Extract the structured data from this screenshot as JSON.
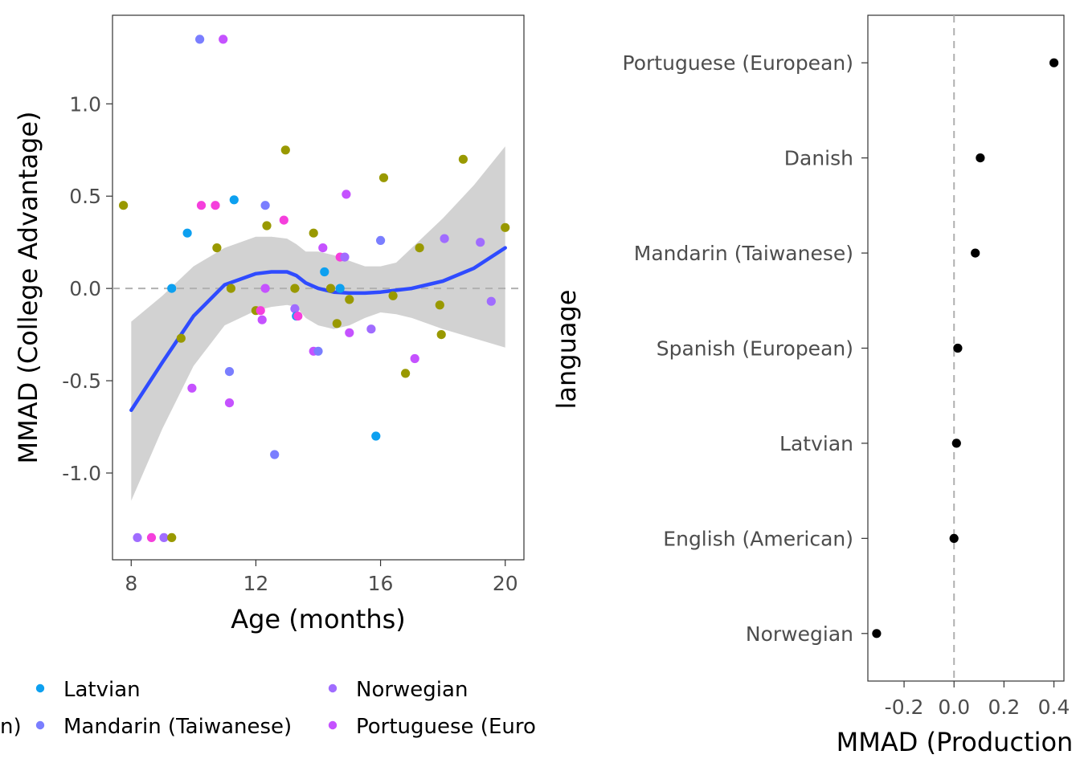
{
  "chart_data": [
    {
      "type": "scatter",
      "xlabel": "Age (months)",
      "ylabel": "MMAD (College Advantage)",
      "xlim": [
        7.4,
        20.6
      ],
      "ylim": [
        -1.47,
        1.48
      ],
      "xticks": [
        8,
        12,
        16,
        20
      ],
      "xtick_labels": [
        "8",
        "12",
        "16",
        "20"
      ],
      "yticks": [
        1.0,
        0.5,
        0.0,
        -0.5,
        -1.0
      ],
      "ytick_labels": [
        "1.0",
        "0.5",
        "0.0",
        "-0.5",
        "-1.0"
      ],
      "reference_line": 0,
      "grid": false,
      "legend": {
        "position": "bottom",
        "entries": [
          {
            "label": "n)",
            "color": "#00BA38"
          },
          {
            "label": "Latvian",
            "color": "#00A5FF"
          },
          {
            "label": "Mandarin (Taiwanese)",
            "color": "#7A7EFF"
          },
          {
            "label": "Norwegian",
            "color": "#A06CFF"
          },
          {
            "label": "Portuguese (Euro",
            "color": "#D350FF"
          }
        ]
      },
      "colors": {
        "olive": "#999900",
        "blue": "#0DA0F0",
        "periwinkle": "#7A7EFF",
        "purple": "#A06CFF",
        "violet": "#C552FF",
        "magenta": "#F53FDC",
        "pink": "#F53FDC",
        "smooth": "#2F4BFF",
        "ribbon": "#D0D0D0"
      },
      "points": [
        {
          "x": 7.75,
          "y": 0.45,
          "c": "olive"
        },
        {
          "x": 8.2,
          "y": -1.35,
          "c": "purple"
        },
        {
          "x": 8.65,
          "y": -1.35,
          "c": "magenta"
        },
        {
          "x": 9.05,
          "y": -1.35,
          "c": "purple"
        },
        {
          "x": 9.3,
          "y": -1.35,
          "c": "olive"
        },
        {
          "x": 9.3,
          "y": 0.0,
          "c": "blue"
        },
        {
          "x": 9.6,
          "y": -0.27,
          "c": "olive"
        },
        {
          "x": 9.8,
          "y": 0.3,
          "c": "blue"
        },
        {
          "x": 9.95,
          "y": -0.54,
          "c": "violet"
        },
        {
          "x": 10.2,
          "y": 1.35,
          "c": "periwinkle"
        },
        {
          "x": 10.25,
          "y": 0.45,
          "c": "magenta"
        },
        {
          "x": 10.7,
          "y": 0.45,
          "c": "magenta"
        },
        {
          "x": 10.75,
          "y": 0.22,
          "c": "olive"
        },
        {
          "x": 10.95,
          "y": 1.35,
          "c": "violet"
        },
        {
          "x": 11.15,
          "y": -0.45,
          "c": "periwinkle"
        },
        {
          "x": 11.2,
          "y": 0.0,
          "c": "olive"
        },
        {
          "x": 11.15,
          "y": -0.62,
          "c": "violet"
        },
        {
          "x": 11.3,
          "y": 0.48,
          "c": "blue"
        },
        {
          "x": 12.0,
          "y": -0.12,
          "c": "olive"
        },
        {
          "x": 12.15,
          "y": -0.12,
          "c": "magenta"
        },
        {
          "x": 12.2,
          "y": -0.17,
          "c": "violet"
        },
        {
          "x": 12.3,
          "y": 0.45,
          "c": "periwinkle"
        },
        {
          "x": 12.35,
          "y": 0.34,
          "c": "olive"
        },
        {
          "x": 12.3,
          "y": 0.0,
          "c": "violet"
        },
        {
          "x": 12.6,
          "y": -0.9,
          "c": "periwinkle"
        },
        {
          "x": 12.9,
          "y": 0.37,
          "c": "magenta"
        },
        {
          "x": 12.95,
          "y": 0.75,
          "c": "olive"
        },
        {
          "x": 13.25,
          "y": 0.0,
          "c": "olive"
        },
        {
          "x": 13.25,
          "y": -0.11,
          "c": "purple"
        },
        {
          "x": 13.3,
          "y": -0.15,
          "c": "blue"
        },
        {
          "x": 13.35,
          "y": -0.15,
          "c": "magenta"
        },
        {
          "x": 13.85,
          "y": 0.3,
          "c": "olive"
        },
        {
          "x": 13.85,
          "y": -0.34,
          "c": "violet"
        },
        {
          "x": 14.0,
          "y": -0.34,
          "c": "periwinkle"
        },
        {
          "x": 14.15,
          "y": 0.22,
          "c": "violet"
        },
        {
          "x": 14.2,
          "y": 0.09,
          "c": "blue"
        },
        {
          "x": 14.4,
          "y": 0.0,
          "c": "olive"
        },
        {
          "x": 14.6,
          "y": -0.19,
          "c": "olive"
        },
        {
          "x": 14.7,
          "y": 0.0,
          "c": "blue"
        },
        {
          "x": 14.7,
          "y": 0.17,
          "c": "magenta"
        },
        {
          "x": 14.85,
          "y": 0.17,
          "c": "purple"
        },
        {
          "x": 14.9,
          "y": 0.51,
          "c": "violet"
        },
        {
          "x": 15.0,
          "y": -0.06,
          "c": "olive"
        },
        {
          "x": 15.0,
          "y": -0.24,
          "c": "violet"
        },
        {
          "x": 15.7,
          "y": -0.22,
          "c": "purple"
        },
        {
          "x": 15.85,
          "y": -0.8,
          "c": "blue"
        },
        {
          "x": 16.0,
          "y": 0.26,
          "c": "periwinkle"
        },
        {
          "x": 16.1,
          "y": 0.6,
          "c": "olive"
        },
        {
          "x": 16.4,
          "y": -0.04,
          "c": "olive"
        },
        {
          "x": 16.8,
          "y": -0.46,
          "c": "olive"
        },
        {
          "x": 17.1,
          "y": -0.38,
          "c": "violet"
        },
        {
          "x": 17.25,
          "y": 0.22,
          "c": "olive"
        },
        {
          "x": 17.9,
          "y": -0.09,
          "c": "olive"
        },
        {
          "x": 17.95,
          "y": -0.25,
          "c": "olive"
        },
        {
          "x": 18.05,
          "y": 0.27,
          "c": "purple"
        },
        {
          "x": 18.65,
          "y": 0.7,
          "c": "olive"
        },
        {
          "x": 19.2,
          "y": 0.25,
          "c": "purple"
        },
        {
          "x": 19.55,
          "y": -0.07,
          "c": "purple"
        },
        {
          "x": 20.0,
          "y": 0.33,
          "c": "olive"
        }
      ],
      "smooth": {
        "x": [
          8,
          9,
          10,
          11,
          12,
          12.5,
          13,
          13.3,
          13.6,
          14,
          14.5,
          15,
          15.5,
          16,
          16.5,
          17,
          18,
          19,
          20
        ],
        "y": [
          -0.66,
          -0.4,
          -0.15,
          0.02,
          0.08,
          0.09,
          0.09,
          0.07,
          0.03,
          0.0,
          -0.02,
          -0.025,
          -0.025,
          -0.02,
          -0.01,
          0.0,
          0.04,
          0.11,
          0.22
        ],
        "lower": [
          -1.15,
          -0.76,
          -0.42,
          -0.2,
          -0.12,
          -0.1,
          -0.09,
          -0.1,
          -0.16,
          -0.2,
          -0.22,
          -0.2,
          -0.16,
          -0.13,
          -0.14,
          -0.16,
          -0.22,
          -0.27,
          -0.32
        ],
        "upper": [
          -0.18,
          -0.04,
          0.12,
          0.22,
          0.28,
          0.28,
          0.27,
          0.24,
          0.2,
          0.2,
          0.18,
          0.15,
          0.12,
          0.12,
          0.14,
          0.22,
          0.38,
          0.56,
          0.77
        ]
      }
    },
    {
      "type": "scatter",
      "xlabel": "MMAD (Production",
      "ylabel": "language",
      "xlim": [
        -0.345,
        0.44
      ],
      "xticks": [
        -0.2,
        0.0,
        0.2,
        0.4
      ],
      "xtick_labels": [
        "-0.2",
        "0.0",
        "0.2",
        "0.4"
      ],
      "reference_line": 0,
      "grid": false,
      "categories": [
        "Portuguese (European)",
        "Danish",
        "Mandarin (Taiwanese)",
        "Spanish (European)",
        "Latvian",
        "English (American)",
        "Norwegian"
      ],
      "values": [
        0.4,
        0.105,
        0.085,
        0.015,
        0.01,
        0.0,
        -0.31
      ],
      "point_color": "#000000"
    }
  ]
}
